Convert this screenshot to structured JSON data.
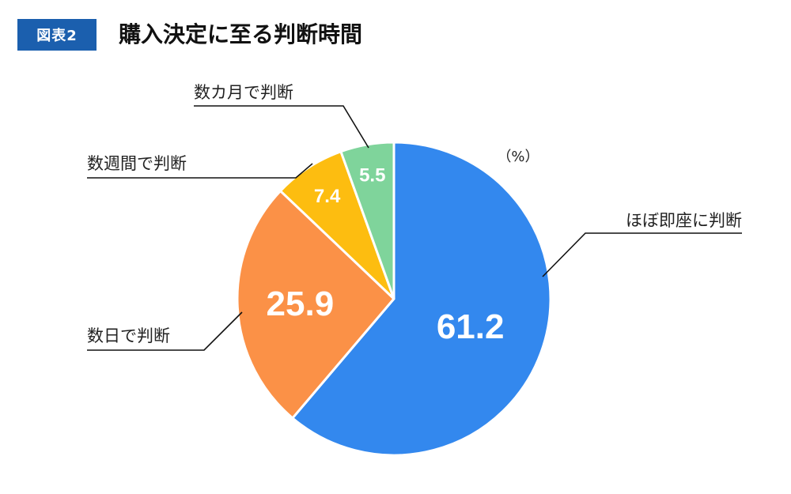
{
  "header": {
    "badge": "図表2",
    "title": "購入決定に至る判断時間"
  },
  "colors": {
    "badge": "#1b5fae",
    "slices": [
      "#3388ee",
      "#fb9147",
      "#fdbd10",
      "#7fd49b"
    ]
  },
  "chart_data": {
    "type": "pie",
    "unit_label": "（%）",
    "start_angle_deg": 0,
    "direction": "clockwise",
    "slices": [
      {
        "label": "ほぼ即座に判断",
        "value": 61.2,
        "value_text": "61.2"
      },
      {
        "label": "数日で判断",
        "value": 25.9,
        "value_text": "25.9"
      },
      {
        "label": "数週間で判断",
        "value": 7.4,
        "value_text": "7.4"
      },
      {
        "label": "数カ月で判断",
        "value": 5.5,
        "value_text": "5.5"
      }
    ]
  }
}
